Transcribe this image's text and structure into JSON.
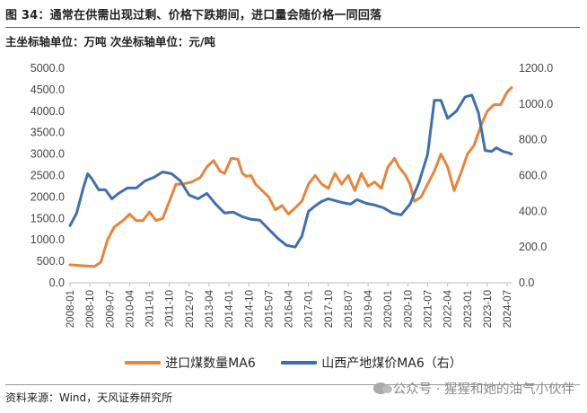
{
  "title": "图 34：通常在供需出现过剩、价格下跌期间，进口量会随价格一同回落",
  "subtitle": "主坐标轴单位：万吨 次坐标轴单位：元/吨",
  "source": "资料来源：Wind，天风证券研究所",
  "watermark": "公众号 · 猩猩和她的油气小伙伴",
  "colors": {
    "orange": "#E8843A",
    "blue": "#3E6FB0"
  },
  "chart_data": {
    "type": "line",
    "x_start": "2008-01",
    "x_end": "2024-09",
    "x_tick_labels": [
      "2008-01",
      "2008-10",
      "2009-07",
      "2010-04",
      "2011-01",
      "2011-10",
      "2012-07",
      "2013-04",
      "2014-01",
      "2014-10",
      "2015-07",
      "2016-04",
      "2017-01",
      "2017-10",
      "2018-07",
      "2019-04",
      "2020-01",
      "2020-10",
      "2021-07",
      "2022-04",
      "2023-01",
      "2023-10",
      "2024-07"
    ],
    "y_left": {
      "min": 0,
      "max": 5000,
      "ticks": [
        "0.0",
        "500.0",
        "1000.0",
        "1500.0",
        "2000.0",
        "2500.0",
        "3000.0",
        "3500.0",
        "4000.0",
        "4500.0",
        "5000.0"
      ]
    },
    "y_right": {
      "min": 0,
      "max": 1200,
      "ticks": [
        "0.0",
        "200.0",
        "400.0",
        "600.0",
        "800.0",
        "1000.0",
        "1200.0"
      ]
    },
    "series": [
      {
        "name": "进口煤数量MA6",
        "axis": "left",
        "color": "#E8843A",
        "points": [
          [
            "2008-01",
            420
          ],
          [
            "2008-06",
            400
          ],
          [
            "2008-12",
            380
          ],
          [
            "2009-03",
            480
          ],
          [
            "2009-06",
            1000
          ],
          [
            "2009-09",
            1300
          ],
          [
            "2010-01",
            1450
          ],
          [
            "2010-04",
            1600
          ],
          [
            "2010-07",
            1450
          ],
          [
            "2010-10",
            1450
          ],
          [
            "2011-01",
            1650
          ],
          [
            "2011-04",
            1450
          ],
          [
            "2011-07",
            1500
          ],
          [
            "2011-10",
            1900
          ],
          [
            "2012-01",
            2300
          ],
          [
            "2012-04",
            2300
          ],
          [
            "2012-08",
            2350
          ],
          [
            "2012-12",
            2450
          ],
          [
            "2013-03",
            2700
          ],
          [
            "2013-06",
            2850
          ],
          [
            "2013-09",
            2600
          ],
          [
            "2013-11",
            2550
          ],
          [
            "2014-02",
            2900
          ],
          [
            "2014-05",
            2880
          ],
          [
            "2014-07",
            2550
          ],
          [
            "2014-09",
            2480
          ],
          [
            "2014-11",
            2500
          ],
          [
            "2015-01",
            2300
          ],
          [
            "2015-04",
            2150
          ],
          [
            "2015-07",
            2000
          ],
          [
            "2015-10",
            1700
          ],
          [
            "2016-01",
            1800
          ],
          [
            "2016-04",
            1600
          ],
          [
            "2016-07",
            1750
          ],
          [
            "2016-10",
            1900
          ],
          [
            "2017-01",
            2300
          ],
          [
            "2017-04",
            2500
          ],
          [
            "2017-07",
            2300
          ],
          [
            "2017-10",
            2200
          ],
          [
            "2018-01",
            2550
          ],
          [
            "2018-04",
            2300
          ],
          [
            "2018-07",
            2500
          ],
          [
            "2018-10",
            2150
          ],
          [
            "2019-01",
            2550
          ],
          [
            "2019-04",
            2250
          ],
          [
            "2019-07",
            2350
          ],
          [
            "2019-10",
            2200
          ],
          [
            "2020-01",
            2700
          ],
          [
            "2020-04",
            2900
          ],
          [
            "2020-06",
            2700
          ],
          [
            "2020-09",
            2500
          ],
          [
            "2020-11",
            2300
          ],
          [
            "2021-01",
            1900
          ],
          [
            "2021-04",
            2000
          ],
          [
            "2021-07",
            2300
          ],
          [
            "2021-10",
            2600
          ],
          [
            "2022-01",
            3000
          ],
          [
            "2022-04",
            2700
          ],
          [
            "2022-07",
            2150
          ],
          [
            "2022-10",
            2550
          ],
          [
            "2023-01",
            3000
          ],
          [
            "2023-04",
            3200
          ],
          [
            "2023-07",
            3650
          ],
          [
            "2023-10",
            4000
          ],
          [
            "2024-01",
            4150
          ],
          [
            "2024-04",
            4150
          ],
          [
            "2024-07",
            4450
          ],
          [
            "2024-09",
            4550
          ]
        ]
      },
      {
        "name": "山西产地煤价MA6（右）",
        "axis": "right",
        "color": "#3E6FB0",
        "points": [
          [
            "2008-01",
            320
          ],
          [
            "2008-04",
            390
          ],
          [
            "2008-07",
            530
          ],
          [
            "2008-09",
            610
          ],
          [
            "2008-11",
            580
          ],
          [
            "2009-02",
            520
          ],
          [
            "2009-05",
            520
          ],
          [
            "2009-08",
            470
          ],
          [
            "2009-11",
            500
          ],
          [
            "2010-03",
            530
          ],
          [
            "2010-07",
            530
          ],
          [
            "2010-11",
            570
          ],
          [
            "2011-03",
            590
          ],
          [
            "2011-07",
            620
          ],
          [
            "2011-11",
            610
          ],
          [
            "2012-03",
            570
          ],
          [
            "2012-07",
            490
          ],
          [
            "2012-11",
            470
          ],
          [
            "2013-03",
            500
          ],
          [
            "2013-07",
            440
          ],
          [
            "2013-11",
            390
          ],
          [
            "2014-03",
            395
          ],
          [
            "2014-07",
            370
          ],
          [
            "2014-11",
            355
          ],
          [
            "2015-03",
            350
          ],
          [
            "2015-07",
            300
          ],
          [
            "2015-11",
            250
          ],
          [
            "2016-03",
            210
          ],
          [
            "2016-07",
            200
          ],
          [
            "2016-10",
            260
          ],
          [
            "2017-01",
            400
          ],
          [
            "2017-04",
            430
          ],
          [
            "2017-07",
            455
          ],
          [
            "2017-10",
            470
          ],
          [
            "2018-01",
            460
          ],
          [
            "2018-04",
            450
          ],
          [
            "2018-08",
            440
          ],
          [
            "2018-11",
            465
          ],
          [
            "2019-03",
            445
          ],
          [
            "2019-07",
            435
          ],
          [
            "2019-11",
            420
          ],
          [
            "2020-03",
            390
          ],
          [
            "2020-07",
            380
          ],
          [
            "2020-11",
            440
          ],
          [
            "2021-03",
            560
          ],
          [
            "2021-07",
            720
          ],
          [
            "2021-10",
            1020
          ],
          [
            "2022-01",
            1020
          ],
          [
            "2022-04",
            920
          ],
          [
            "2022-08",
            960
          ],
          [
            "2022-12",
            1040
          ],
          [
            "2023-03",
            1050
          ],
          [
            "2023-06",
            950
          ],
          [
            "2023-09",
            740
          ],
          [
            "2023-12",
            735
          ],
          [
            "2024-02",
            755
          ],
          [
            "2024-05",
            735
          ],
          [
            "2024-08",
            725
          ],
          [
            "2024-09",
            720
          ]
        ]
      }
    ]
  }
}
